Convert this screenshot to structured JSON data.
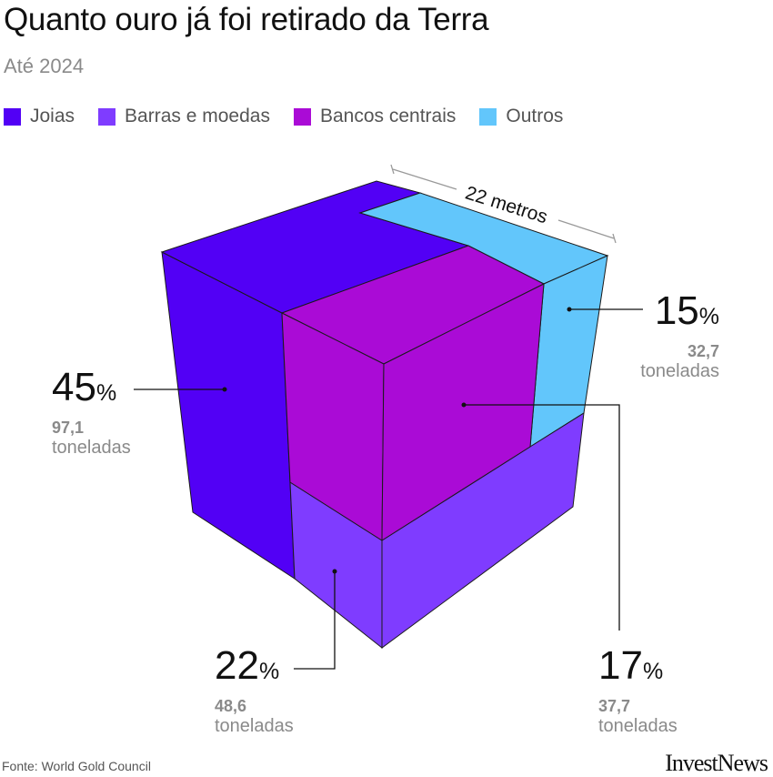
{
  "chart_data": {
    "type": "3d-cube-breakdown",
    "title": "Quanto ouro já foi retirado da Terra",
    "subtitle": "Até 2024",
    "dimension_label": "22 metros",
    "categories": [
      "Joias",
      "Barras e moedas",
      "Bancos centrais",
      "Outros"
    ],
    "series": [
      {
        "name": "Joias",
        "percent": 45,
        "percent_label": "45",
        "tonnes": "97,1",
        "color": "#5200f5"
      },
      {
        "name": "Barras e moedas",
        "percent": 22,
        "percent_label": "22",
        "tonnes": "48,6",
        "color": "#7f3cff"
      },
      {
        "name": "Bancos centrais",
        "percent": 17,
        "percent_label": "17",
        "tonnes": "37,7",
        "color": "#aa0bd6"
      },
      {
        "name": "Outros",
        "percent": 15,
        "percent_label": "15",
        "tonnes": "32,7",
        "color": "#62c6fb"
      }
    ],
    "unit_symbol": "%",
    "unit_text": "toneladas"
  },
  "source": "Fonte: World Gold Council",
  "logo": "InvestNews"
}
